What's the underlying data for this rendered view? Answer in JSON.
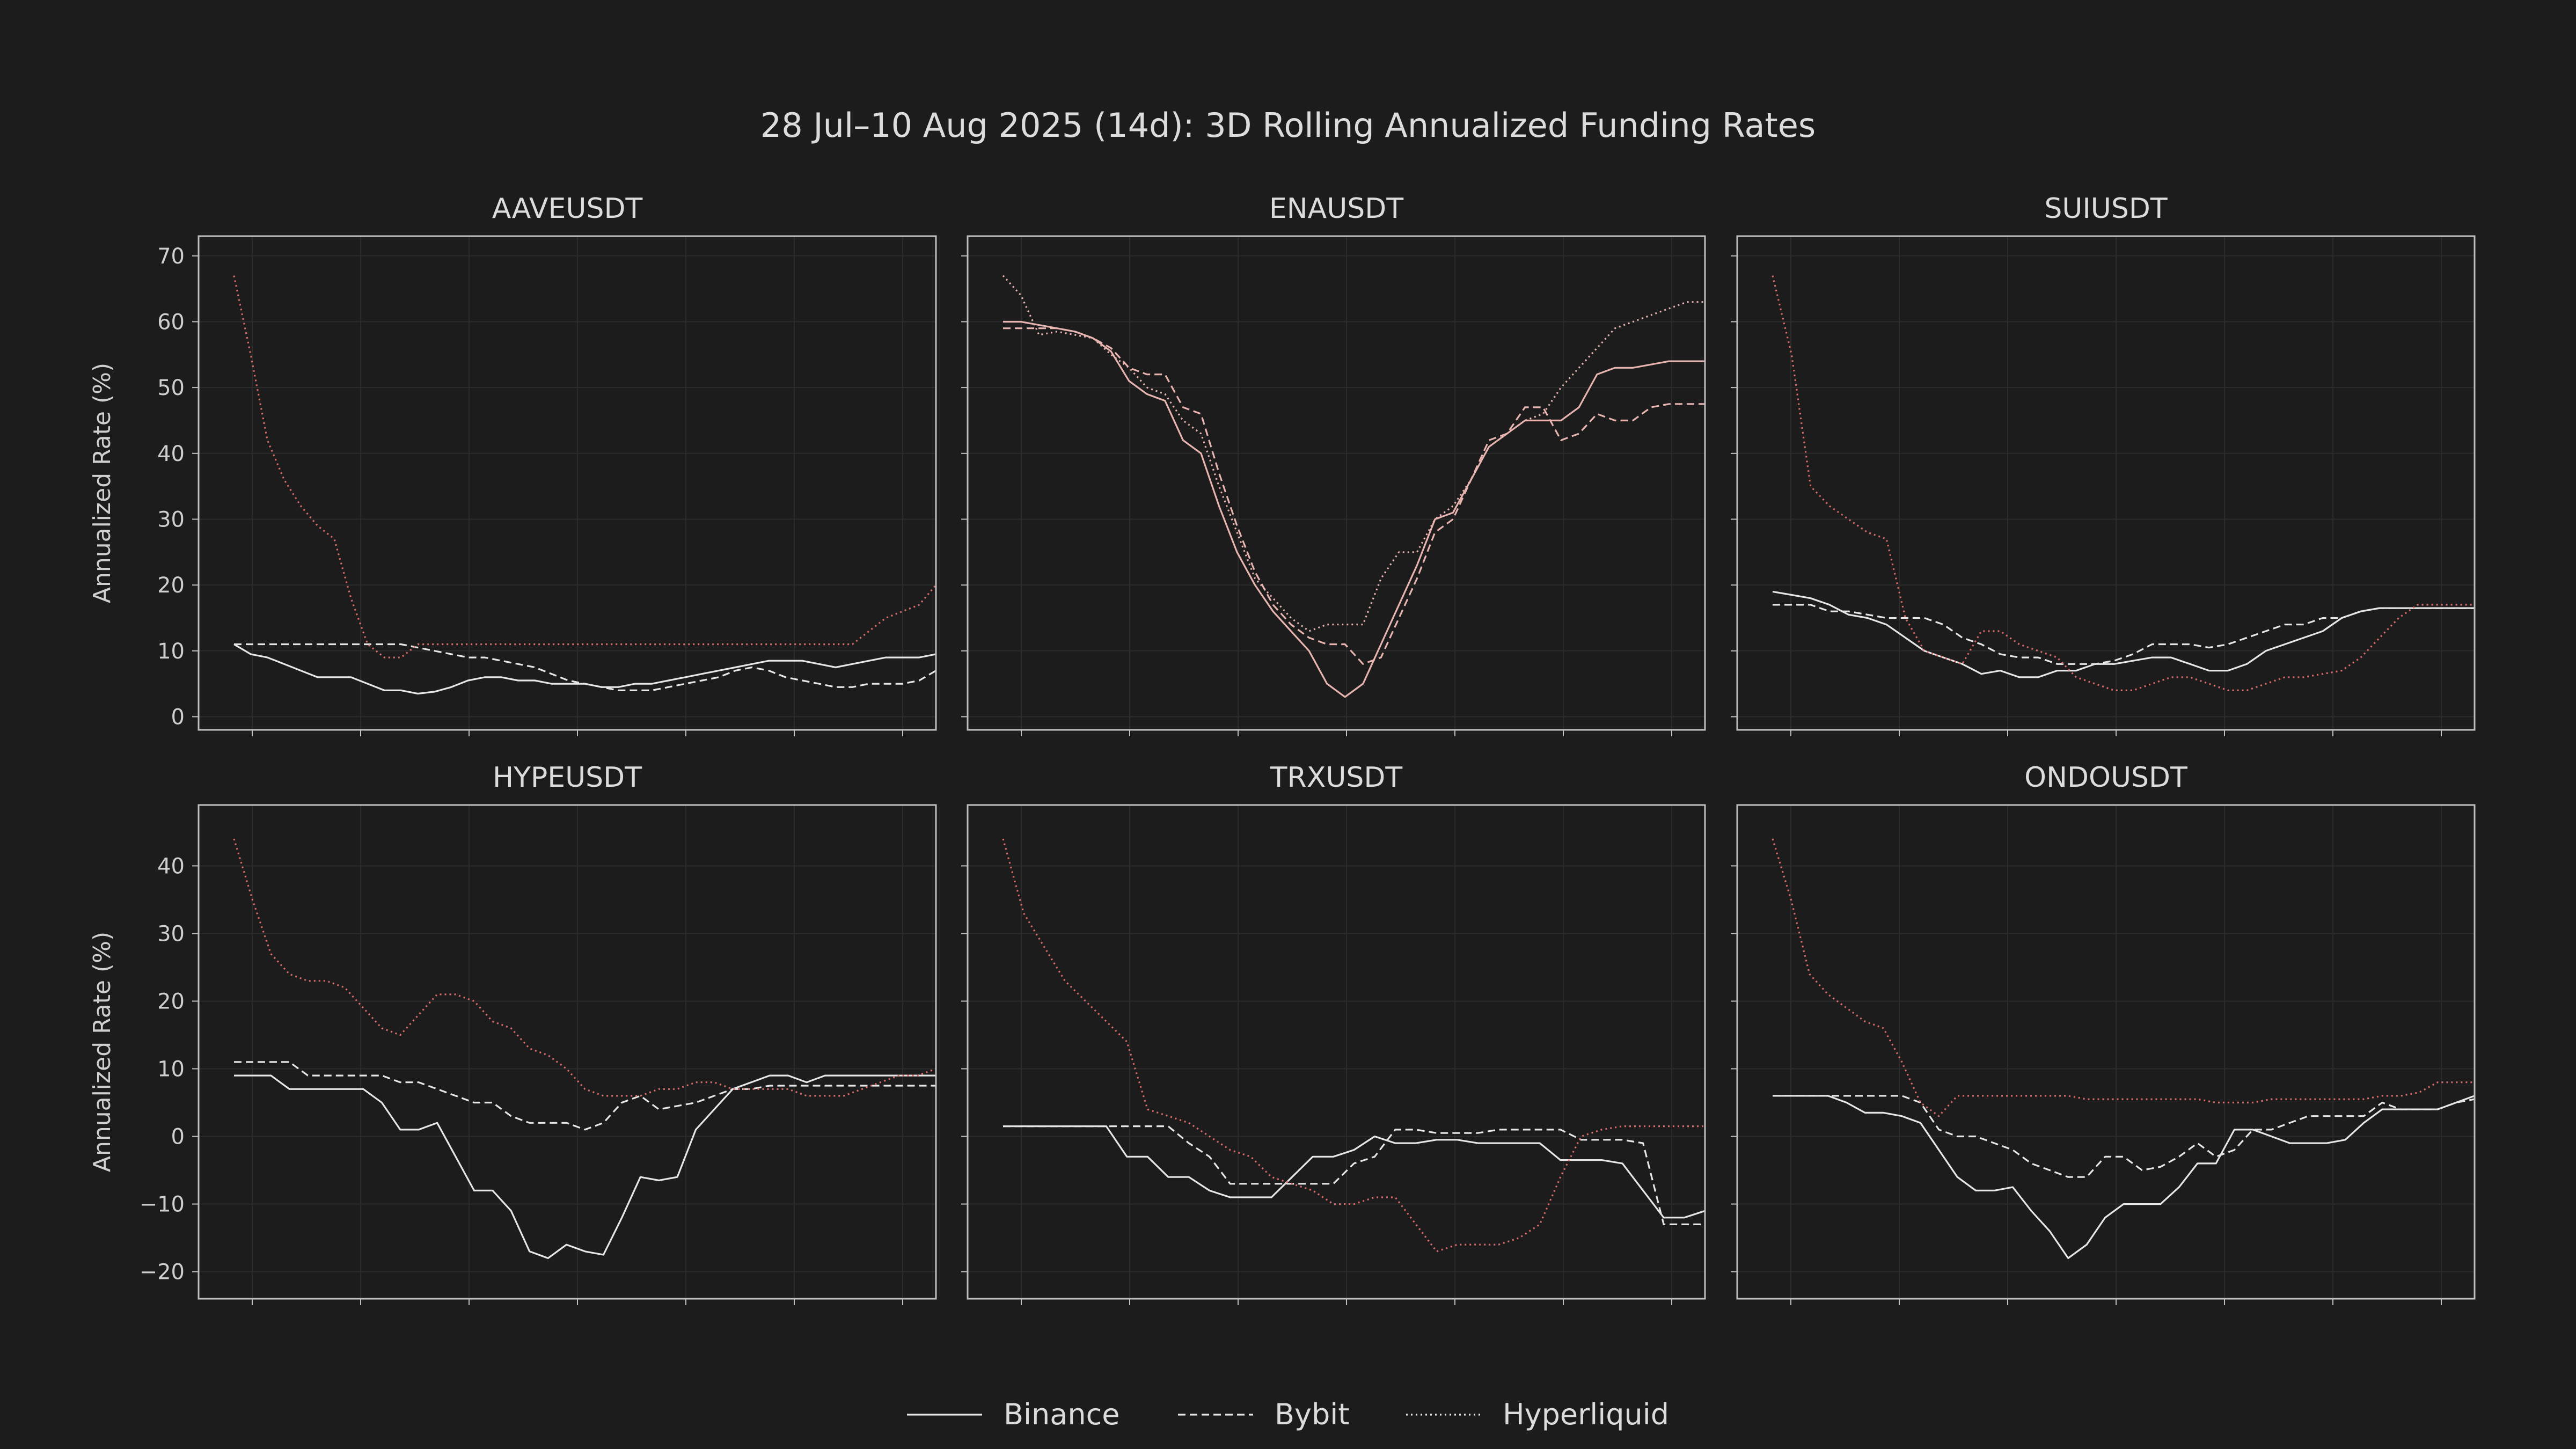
{
  "title": "28 Jul–10 Aug 2025 (14d): 3D Rolling Annualized Funding Rates",
  "ylabel": "Annualized Rate (%)",
  "legend": [
    {
      "name": "Binance",
      "style": "solid"
    },
    {
      "name": "Bybit",
      "style": "dashed"
    },
    {
      "name": "Hyperliquid",
      "style": "dotted"
    }
  ],
  "colors": {
    "background": "#1c1c1c",
    "frame": "#bfbfbf",
    "text": "#dcdcdc",
    "binance_neutral": "#e6e6e6",
    "bybit_neutral": "#e6e6e6",
    "hyperliquid_accent": "#d96b6b",
    "binance_accent": "#e8b4b0"
  },
  "chart_data": [
    {
      "type": "line",
      "title": "AAVEUSDT",
      "ylim": [
        -2,
        73
      ],
      "yticks": [
        0,
        10,
        20,
        30,
        40,
        50,
        60,
        70
      ],
      "grid": true,
      "series": [
        {
          "name": "Binance",
          "values": [
            11,
            9.5,
            9,
            8,
            7,
            6,
            6,
            6,
            5,
            4,
            4,
            3.5,
            3.8,
            4.5,
            5.5,
            6,
            6,
            5.5,
            5.5,
            5,
            5,
            5,
            4.5,
            4.5,
            5,
            5,
            5.5,
            6,
            6.5,
            7,
            7.5,
            8,
            8.5,
            8.5,
            8.5,
            8,
            7.5,
            8,
            8.5,
            9,
            9,
            9,
            9.5
          ]
        },
        {
          "name": "Bybit",
          "values": [
            11,
            11,
            11,
            11,
            11,
            11,
            11,
            11,
            11,
            11,
            11,
            10.5,
            10,
            9.5,
            9,
            9,
            8.5,
            8,
            7.5,
            6.5,
            5.5,
            5,
            4.5,
            4,
            4,
            4,
            4.5,
            5,
            5.5,
            6,
            7,
            7.5,
            7,
            6,
            5.5,
            5,
            4.5,
            4.5,
            5,
            5,
            5,
            5.5,
            7
          ]
        },
        {
          "name": "Hyperliquid",
          "values": [
            67,
            55,
            42,
            36,
            32,
            29,
            27,
            18,
            11,
            9,
            9,
            11,
            11,
            11,
            11,
            11,
            11,
            11,
            11,
            11,
            11,
            11,
            11,
            11,
            11,
            11,
            11,
            11,
            11,
            11,
            11,
            11,
            11,
            11,
            11,
            11,
            11,
            11,
            13,
            15,
            16,
            17,
            20
          ]
        }
      ]
    },
    {
      "type": "line",
      "title": "ENAUSDT",
      "ylim": [
        -2,
        73
      ],
      "yticks": [
        0,
        10,
        20,
        30,
        40,
        50,
        60,
        70
      ],
      "grid": true,
      "series": [
        {
          "name": "Binance",
          "values": [
            60,
            60,
            59.5,
            59,
            58.5,
            57.5,
            55.5,
            51,
            49,
            48,
            42,
            40,
            32,
            25,
            20,
            16,
            13,
            10,
            5,
            3,
            5,
            11,
            17,
            23,
            30,
            31,
            36,
            41,
            43,
            45,
            45,
            45,
            47,
            52,
            53,
            53,
            53.5,
            54,
            54,
            54
          ]
        },
        {
          "name": "Bybit",
          "values": [
            59,
            59,
            59,
            59,
            58.5,
            57.5,
            56,
            53,
            52,
            52,
            47,
            46,
            37,
            29,
            22,
            17,
            14,
            12,
            11,
            11,
            8,
            9,
            15,
            21,
            28,
            30,
            36,
            42,
            43,
            47,
            47,
            42,
            43,
            46,
            45,
            45,
            47,
            47.5,
            47.5,
            47.5
          ]
        },
        {
          "name": "Hyperliquid",
          "values": [
            67,
            64,
            58,
            58.5,
            58,
            57.5,
            55,
            53,
            50,
            49,
            45,
            43,
            35,
            28,
            21,
            18,
            15,
            13,
            14,
            14,
            14,
            21,
            25,
            25,
            30,
            32,
            36,
            41,
            43,
            45,
            46,
            50,
            53,
            56,
            59,
            60,
            61,
            62,
            63,
            63
          ]
        }
      ]
    },
    {
      "type": "line",
      "title": "SUIUSDT",
      "ylim": [
        -2,
        73
      ],
      "yticks": [
        0,
        10,
        20,
        30,
        40,
        50,
        60,
        70
      ],
      "grid": true,
      "series": [
        {
          "name": "Binance",
          "values": [
            19,
            18.5,
            18,
            17,
            15.5,
            15,
            14,
            12,
            10,
            9,
            8,
            6.5,
            7,
            6,
            6,
            7,
            7,
            8,
            8,
            8.5,
            9,
            9,
            8,
            7,
            7,
            8,
            10,
            11,
            12,
            13,
            15,
            16,
            16.5,
            16.5,
            16.5,
            16.5,
            16.5,
            16.5
          ]
        },
        {
          "name": "Bybit",
          "values": [
            17,
            17,
            17,
            16,
            16,
            15.5,
            15,
            15,
            15,
            14,
            12,
            11,
            9.5,
            9,
            9,
            8,
            8,
            8,
            8.5,
            9.5,
            11,
            11,
            11,
            10.5,
            11,
            12,
            13,
            14,
            14,
            15,
            15,
            16,
            16.5,
            16.5,
            16.5,
            16.5,
            16.5,
            16.5
          ]
        },
        {
          "name": "Hyperliquid",
          "values": [
            67,
            55,
            35,
            32,
            30,
            28,
            27,
            15,
            10,
            9,
            8,
            13,
            13,
            11,
            10,
            9,
            6,
            5,
            4,
            4,
            5,
            6,
            6,
            5,
            4,
            4,
            5,
            6,
            6,
            6.5,
            7,
            9,
            12,
            15,
            17,
            17,
            17,
            17
          ]
        }
      ]
    },
    {
      "type": "line",
      "title": "HYPEUSDT",
      "ylim": [
        -24,
        49
      ],
      "yticks": [
        -20,
        -10,
        0,
        10,
        20,
        30,
        40
      ],
      "grid": true,
      "series": [
        {
          "name": "Binance",
          "values": [
            9,
            9,
            9,
            7,
            7,
            7,
            7,
            7,
            5,
            1,
            1,
            2,
            -3,
            -8,
            -8,
            -11,
            -17,
            -18,
            -16,
            -17,
            -17.5,
            -12,
            -6,
            -6.5,
            -6,
            1,
            4,
            7,
            8,
            9,
            9,
            8,
            9,
            9,
            9,
            9,
            9,
            9,
            9
          ]
        },
        {
          "name": "Bybit",
          "values": [
            11,
            11,
            11,
            11,
            9,
            9,
            9,
            9,
            9,
            8,
            8,
            7,
            6,
            5,
            5,
            3,
            2,
            2,
            2,
            1,
            2,
            5,
            6,
            4,
            4.5,
            5,
            6,
            7,
            7,
            7.5,
            7.5,
            7.5,
            7.5,
            7.5,
            7.5,
            7.5,
            7.5,
            7.5,
            7.5
          ]
        },
        {
          "name": "Hyperliquid",
          "values": [
            44,
            35,
            27,
            24,
            23,
            23,
            22,
            19,
            16,
            15,
            18,
            21,
            21,
            20,
            17,
            16,
            13,
            12,
            10,
            7,
            6,
            6,
            6,
            7,
            7,
            8,
            8,
            7,
            7,
            7,
            7,
            6,
            6,
            6,
            7,
            8,
            9,
            9,
            10
          ]
        }
      ]
    },
    {
      "type": "line",
      "title": "TRXUSDT",
      "ylim": [
        -24,
        49
      ],
      "yticks": [
        -20,
        -10,
        0,
        10,
        20,
        30,
        40
      ],
      "grid": true,
      "series": [
        {
          "name": "Binance",
          "values": [
            1.5,
            1.5,
            1.5,
            1.5,
            1.5,
            1.5,
            -3,
            -3,
            -6,
            -6,
            -8,
            -9,
            -9,
            -9,
            -6,
            -3,
            -3,
            -2,
            0,
            -1,
            -1,
            -0.5,
            -0.5,
            -1,
            -1,
            -1,
            -1,
            -3.5,
            -3.5,
            -3.5,
            -4,
            -8,
            -12,
            -12,
            -11
          ]
        },
        {
          "name": "Bybit",
          "values": [
            1.5,
            1.5,
            1.5,
            1.5,
            1.5,
            1.5,
            1.5,
            1.5,
            1.5,
            -1,
            -3,
            -7,
            -7,
            -7,
            -7,
            -7,
            -7,
            -4,
            -3,
            1,
            1,
            0.5,
            0.5,
            0.5,
            1,
            1,
            1,
            1,
            -0.5,
            -0.5,
            -0.5,
            -1,
            -13,
            -13,
            -13
          ]
        },
        {
          "name": "Hyperliquid",
          "values": [
            44,
            33,
            28,
            23,
            20,
            17,
            14,
            4,
            3,
            2,
            0,
            -2,
            -3,
            -6,
            -7,
            -8,
            -10,
            -10,
            -9,
            -9,
            -13,
            -17,
            -16,
            -16,
            -16,
            -15,
            -13,
            -6,
            0,
            1,
            1.5,
            1.5,
            1.5,
            1.5,
            1.5
          ]
        }
      ]
    },
    {
      "type": "line",
      "title": "ONDOUSDT",
      "ylim": [
        -24,
        49
      ],
      "yticks": [
        -20,
        -10,
        0,
        10,
        20,
        30,
        40
      ],
      "grid": true,
      "series": [
        {
          "name": "Binance",
          "values": [
            6,
            6,
            6,
            6,
            5,
            3.5,
            3.5,
            3,
            2,
            -2,
            -6,
            -8,
            -8,
            -7.5,
            -11,
            -14,
            -18,
            -16,
            -12,
            -10,
            -10,
            -10,
            -7.5,
            -4,
            -4,
            1,
            1,
            0,
            -1,
            -1,
            -1,
            -0.5,
            2,
            4,
            4,
            4,
            4,
            5,
            6
          ]
        },
        {
          "name": "Bybit",
          "values": [
            6,
            6,
            6,
            6,
            6,
            6,
            6,
            6,
            5,
            1,
            0,
            0,
            -1,
            -2,
            -4,
            -5,
            -6,
            -6,
            -3,
            -3,
            -5,
            -4.5,
            -3,
            -1,
            -3,
            -2,
            1,
            1,
            2,
            3,
            3,
            3,
            3,
            5,
            4,
            4,
            4,
            5,
            5.5
          ]
        },
        {
          "name": "Hyperliquid",
          "values": [
            44,
            35,
            24,
            21,
            19,
            17,
            16,
            11,
            5,
            3,
            6,
            6,
            6,
            6,
            6,
            6,
            6,
            5.5,
            5.5,
            5.5,
            5.5,
            5.5,
            5.5,
            5.5,
            5,
            5,
            5,
            5.5,
            5.5,
            5.5,
            5.5,
            5.5,
            5.5,
            6,
            6,
            6.5,
            8,
            8,
            8
          ]
        }
      ]
    }
  ]
}
